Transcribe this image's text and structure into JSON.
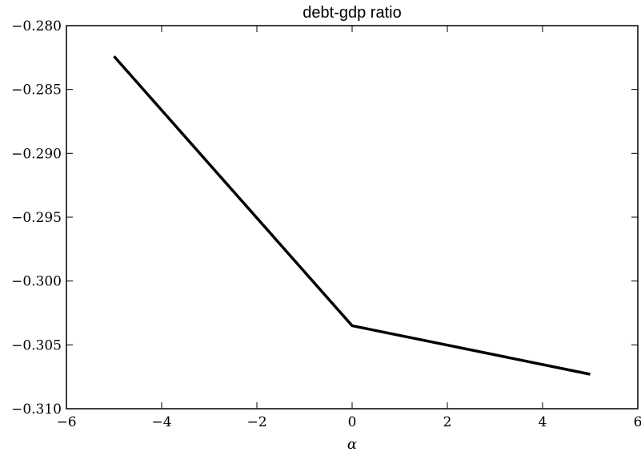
{
  "chart_data": {
    "type": "line",
    "title": "debt-gdp ratio",
    "xlabel": "α",
    "ylabel": "",
    "xlim": [
      -6,
      6
    ],
    "ylim": [
      -0.31,
      -0.28
    ],
    "x_ticks": [
      -6,
      -4,
      -2,
      0,
      2,
      4,
      6
    ],
    "y_ticks": [
      -0.31,
      -0.305,
      -0.3,
      -0.295,
      -0.29,
      -0.285,
      -0.28
    ],
    "x_tick_labels": [
      "−6",
      "−4",
      "−2",
      "0",
      "2",
      "4",
      "6"
    ],
    "y_tick_labels": [
      "−0.310",
      "−0.305",
      "−0.300",
      "−0.295",
      "−0.290",
      "−0.285",
      "−0.280"
    ],
    "grid": false,
    "series": [
      {
        "x": [
          -5,
          0,
          5
        ],
        "y": [
          -0.2824,
          -0.3035,
          -0.3073
        ],
        "color": "#000000"
      }
    ]
  }
}
